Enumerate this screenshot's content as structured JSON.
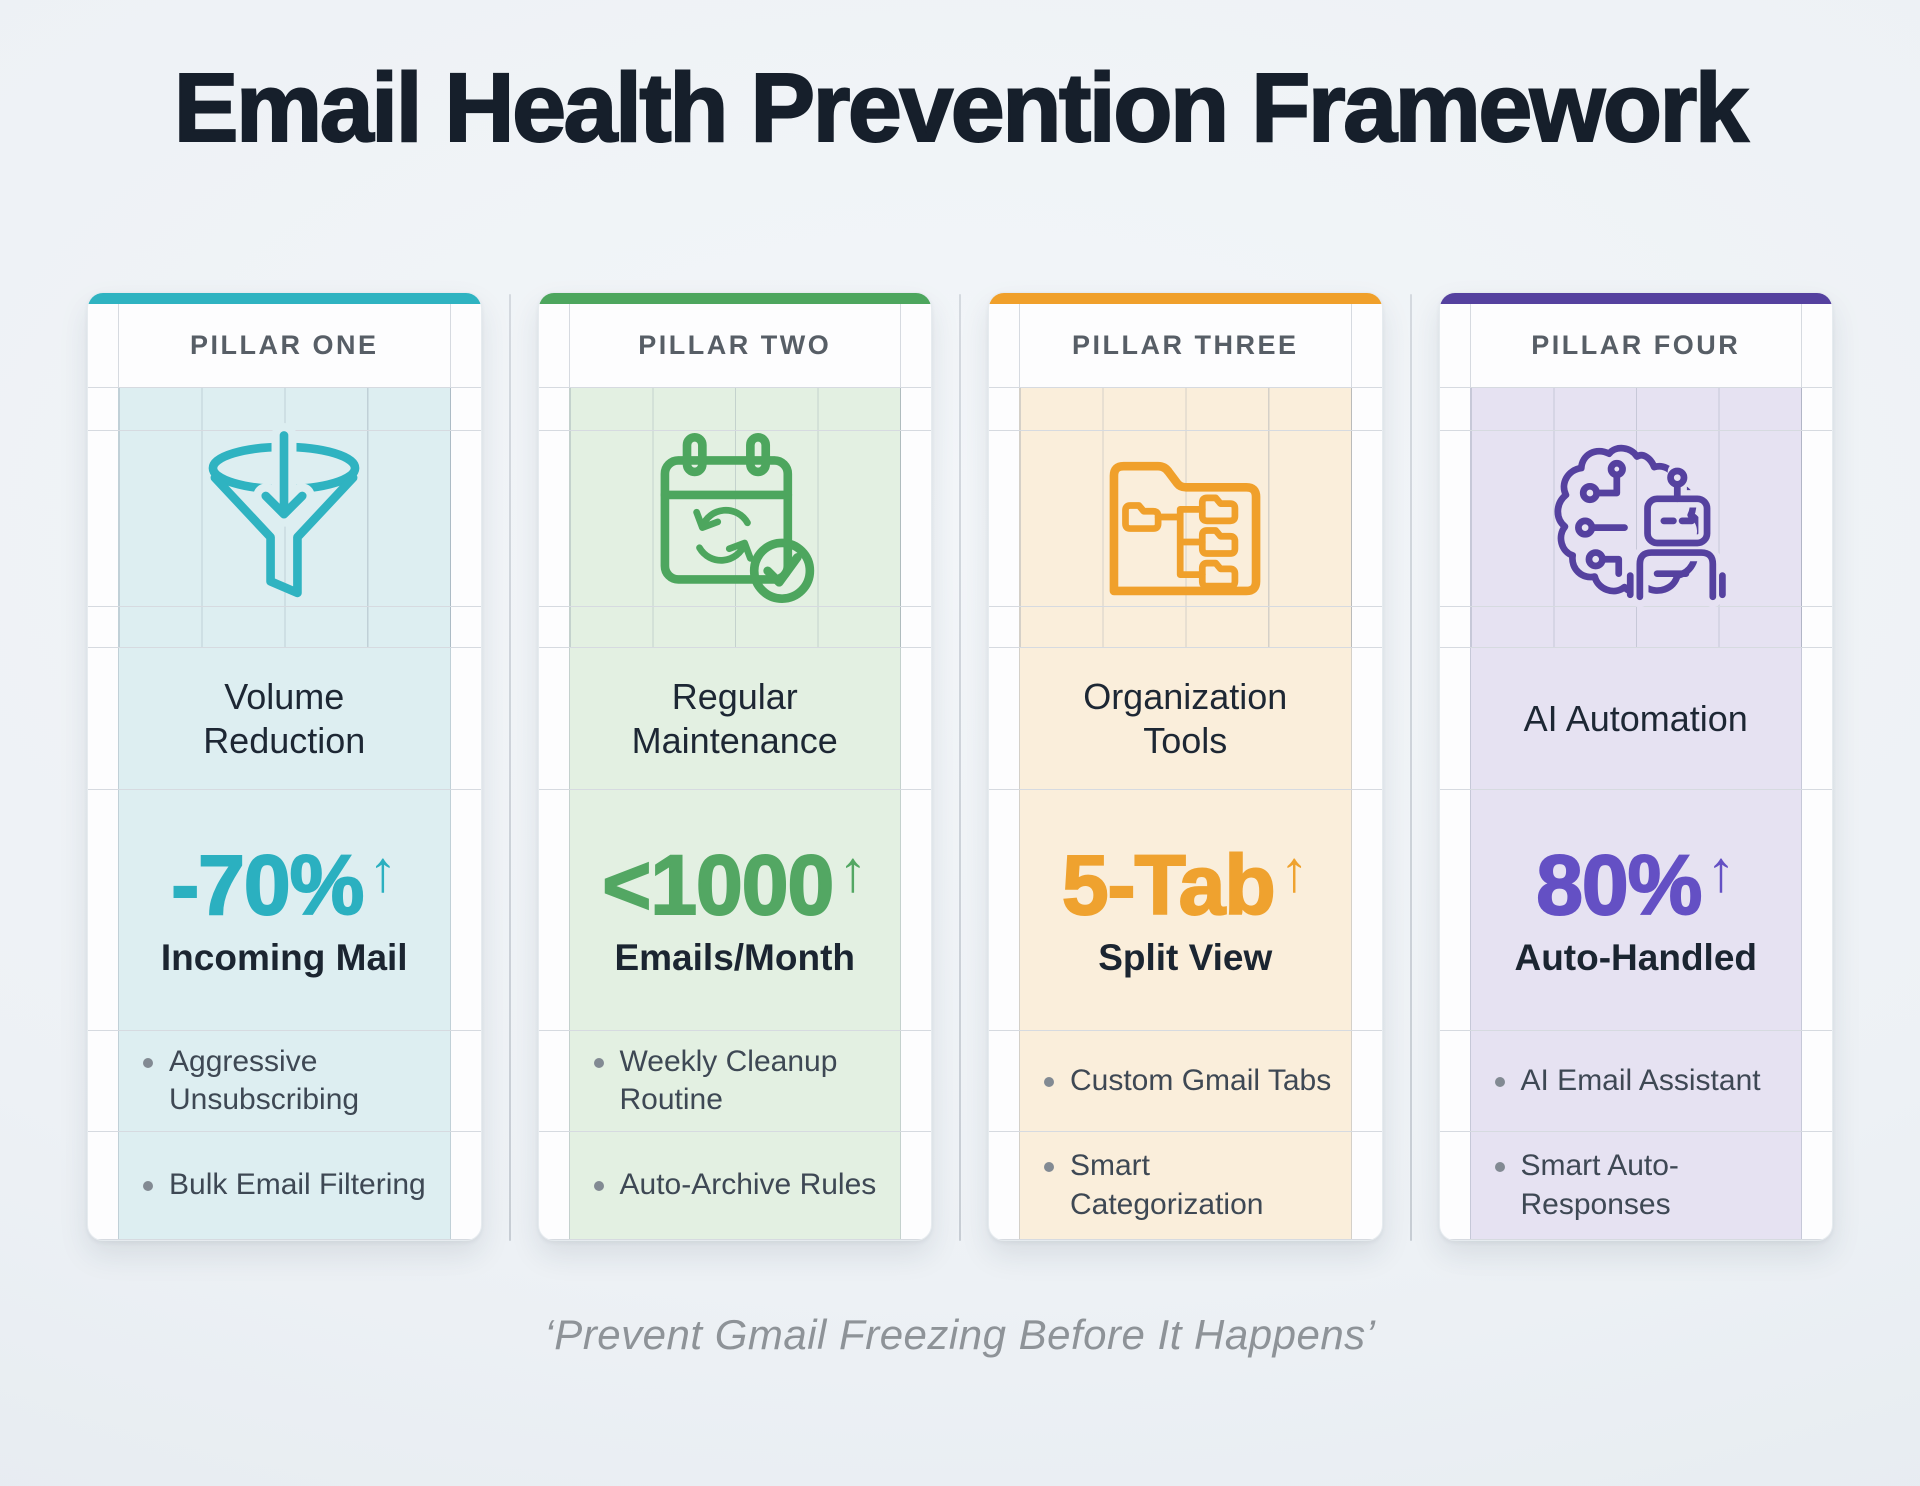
{
  "header": {
    "title": "Email Health Prevention Framework"
  },
  "footer": {
    "quote": "‘Prevent Gmail Freezing Before It Happens’"
  },
  "pillars": [
    {
      "label": "PILLAR ONE",
      "icon": "funnel-icon",
      "title": "Volume Reduction",
      "stat": {
        "value": "-70%",
        "arrow": "↑",
        "label": "Incoming Mail"
      },
      "bullets": [
        "Aggressive Unsubscribing",
        "Bulk Email Filtering"
      ],
      "colors": {
        "accent": "#2bb0c0",
        "bar": "#2fb3c1",
        "tint": "#ddeef1"
      }
    },
    {
      "label": "PILLAR TWO",
      "icon": "calendar-refresh-icon",
      "title": "Regular Maintenance",
      "stat": {
        "value": "<1000",
        "arrow": "↑",
        "label": "Emails/Month"
      },
      "bullets": [
        "Weekly Cleanup Routine",
        "Auto-Archive Rules"
      ],
      "colors": {
        "accent": "#53a763",
        "bar": "#4da65e",
        "tint": "#e3f0e2"
      }
    },
    {
      "label": "PILLAR THREE",
      "icon": "folder-tree-icon",
      "title": "Organization Tools",
      "stat": {
        "value": "5-Tab",
        "arrow": "↑",
        "label": "Split View"
      },
      "bullets": [
        "Custom Gmail Tabs",
        "Smart Categorization"
      ],
      "colors": {
        "accent": "#efa22f",
        "bar": "#f0a02b",
        "tint": "#faeedb"
      }
    },
    {
      "label": "PILLAR FOUR",
      "icon": "ai-brain-robot-icon",
      "title": "AI Automation",
      "stat": {
        "value": "80%",
        "arrow": "↑",
        "label": "Auto-Handled"
      },
      "bullets": [
        "AI Email Assistant",
        "Smart Auto-Responses"
      ],
      "colors": {
        "accent": "#6450c4",
        "bar": "#55419f",
        "tint": "#e6e2f2"
      }
    }
  ]
}
